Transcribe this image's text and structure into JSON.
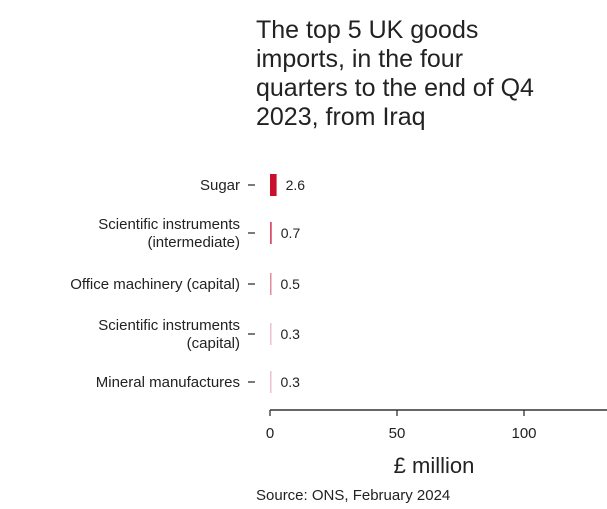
{
  "chart_data": {
    "type": "bar",
    "orientation": "horizontal",
    "title": "The top 5 UK goods\nimports, in the four\nquarters to the end of Q4\n2023, from Iraq",
    "categories": [
      "Sugar",
      "Scientific instruments (intermediate)",
      "Office machinery (capital)",
      "Scientific instruments (capital)",
      "Mineral manufactures"
    ],
    "category_lines": [
      [
        "Sugar"
      ],
      [
        "Scientific instruments",
        "(intermediate)"
      ],
      [
        "Office machinery (capital)"
      ],
      [
        "Scientific instruments",
        "(capital)"
      ],
      [
        "Mineral manufactures"
      ]
    ],
    "values": [
      2.6,
      0.7,
      0.5,
      0.3,
      0.3
    ],
    "value_labels": [
      "2.6",
      "0.7",
      "0.5",
      "0.3",
      "0.3"
    ],
    "bar_colors": [
      "#c8102e",
      "#d9506a",
      "#e48a9b",
      "#efc2cb",
      "#efc2cb"
    ],
    "xlabel": "£ million",
    "x_ticks": [
      0,
      50,
      100
    ],
    "xlim": [
      0,
      130
    ],
    "grid": false,
    "legend": "none"
  },
  "source": "Source: ONS, February 2024"
}
